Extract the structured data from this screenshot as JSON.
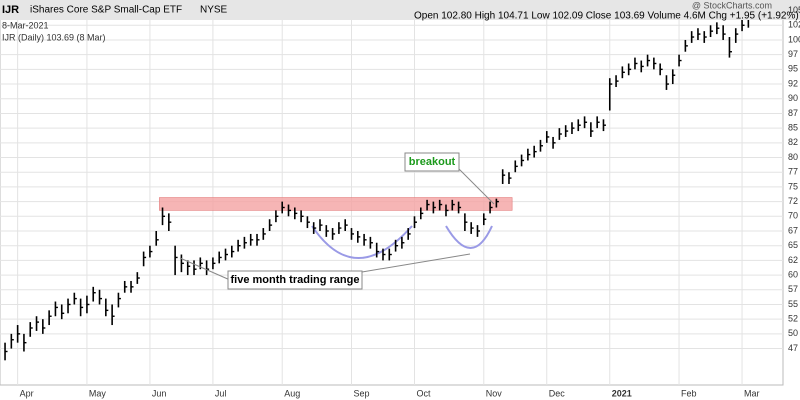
{
  "header": {
    "symbol": "IJR",
    "name": "iShares Core S&P Small-Cap ETF",
    "exchange": "NYSE",
    "brand": "@ StockCharts.com",
    "date": "8-Mar-2021",
    "quote": "Open 102.80 High 104.71 Low 102.09 Close 103.69 Volume 4.6M Chg +1.95 (+1.92%)"
  },
  "chart_data": {
    "type": "ohlc",
    "legend": "IJR (Daily) 103.69 (8 Mar)",
    "color": "#000000",
    "grid": true,
    "annotations": [
      "breakout",
      "five month trading range"
    ],
    "resistance_zone": [
      71,
      73.2
    ],
    "zone_x": [
      24.5,
      80.5
    ],
    "zone_color": "#f4a3a3",
    "ylim": [
      41.3,
      106.8
    ],
    "xlim": [
      -0.8,
      123.5
    ],
    "yticks": [
      {
        "value": 47.5,
        "label": "47"
      },
      50,
      {
        "value": 52.5,
        "label": "52"
      },
      55,
      {
        "value": 57.5,
        "label": "57"
      },
      60,
      {
        "value": 62.5,
        "label": "62"
      },
      65,
      {
        "value": 67.5,
        "label": "67"
      },
      70,
      {
        "value": 72.5,
        "label": "72"
      },
      75,
      {
        "value": 77.5,
        "label": "77"
      },
      80,
      {
        "value": 82.5,
        "label": "82"
      },
      85,
      {
        "value": 87.5,
        "label": "87"
      },
      90,
      {
        "value": 92.5,
        "label": "92"
      },
      95,
      {
        "value": 97.5,
        "label": "97"
      },
      100,
      {
        "value": 102.5,
        "label": "102"
      },
      105
    ],
    "xticks": [
      {
        "value": 2,
        "label": "Apr"
      },
      {
        "value": 13,
        "label": "May"
      },
      {
        "value": 23,
        "label": "Jun"
      },
      {
        "value": 33,
        "label": "Jul"
      },
      {
        "value": 44,
        "label": "Aug"
      },
      {
        "value": 55,
        "label": "Sep"
      },
      {
        "value": 65,
        "label": "Oct"
      },
      {
        "value": 76,
        "label": "Nov"
      },
      {
        "value": 86,
        "label": "Dec"
      },
      {
        "value": 96,
        "label": "2021"
      },
      {
        "value": 107,
        "label": "Feb"
      },
      {
        "value": 117,
        "label": "Mar"
      }
    ],
    "high": [
      48.5,
      50,
      51.5,
      50,
      52,
      53,
      52.5,
      54,
      55.5,
      55,
      56,
      57,
      56,
      56.5,
      58,
      57.5,
      56,
      55,
      57,
      59,
      59,
      60.5,
      64,
      65,
      67.5,
      71.5,
      70.5,
      65,
      63.5,
      62.5,
      62.5,
      63,
      62.5,
      63,
      64,
      64.5,
      65,
      66,
      66.5,
      67,
      67,
      68,
      69.5,
      71,
      72.5,
      72,
      71.5,
      71,
      70,
      69,
      69.5,
      68.5,
      68,
      69,
      69.5,
      68,
      67.5,
      67,
      66.5,
      65.5,
      64.5,
      64.5,
      66,
      66.5,
      68,
      70,
      71.5,
      72.8,
      72.5,
      72.8,
      72,
      72.8,
      72.5,
      70.5,
      69,
      68.5,
      70.5,
      72.5,
      73,
      78,
      77.5,
      79.5,
      80.5,
      81.5,
      82,
      83,
      84.5,
      83.5,
      85,
      85.5,
      86,
      86.5,
      87,
      86,
      87,
      86.5,
      93.5,
      94,
      95.5,
      96,
      97,
      96.5,
      97.5,
      97,
      96,
      94,
      95,
      97.5,
      100,
      101.5,
      102,
      101.5,
      102.5,
      103,
      102.5,
      100.5,
      102,
      103.5,
      104.71
    ],
    "low": [
      45.5,
      47.5,
      48.5,
      47,
      49.5,
      50.5,
      50,
      51.5,
      53,
      52.5,
      53.5,
      55,
      53,
      53.5,
      55.5,
      55,
      53,
      51.5,
      54.5,
      57,
      57,
      58.5,
      61.5,
      63,
      65,
      68.5,
      67.5,
      60,
      60.5,
      60,
      60,
      61,
      60,
      61,
      62,
      62.5,
      63,
      64,
      64.5,
      65,
      65,
      66,
      67.5,
      69,
      70.5,
      70,
      69.5,
      69,
      68,
      67,
      67.5,
      66.5,
      66,
      67,
      67.5,
      66,
      65.5,
      65,
      64.5,
      63,
      62.5,
      62.5,
      64,
      64.5,
      66,
      68,
      69.5,
      71,
      70.5,
      71,
      70,
      71,
      70.5,
      67.5,
      67,
      66.5,
      68.5,
      70.5,
      71.5,
      75.5,
      75.5,
      77.5,
      78.5,
      79.5,
      80,
      81,
      82.5,
      81.5,
      83,
      83.5,
      84,
      84.5,
      85,
      83.5,
      85,
      84.5,
      88,
      92,
      93.5,
      94,
      95,
      94.5,
      95.5,
      95,
      94,
      91.5,
      92.5,
      95.5,
      98,
      99.5,
      100,
      99.5,
      100.5,
      101,
      100,
      97,
      99.5,
      101.5,
      102.09
    ],
    "close": [
      47,
      49,
      50,
      48.5,
      51,
      52,
      51,
      53,
      54.5,
      53.5,
      55,
      56,
      54.5,
      55,
      57,
      56,
      54,
      53,
      56,
      58,
      58,
      59.5,
      63,
      64,
      66,
      70,
      69,
      63,
      62,
      61.5,
      61,
      62,
      61,
      62,
      63,
      63.5,
      64,
      65,
      65.5,
      66,
      66,
      67,
      68.5,
      70,
      71.5,
      71,
      70.5,
      70,
      69,
      68,
      68.5,
      67.5,
      67,
      68,
      68.5,
      67,
      66.5,
      66,
      65.5,
      64,
      63.5,
      63.5,
      65,
      65.5,
      67,
      69,
      70.5,
      72,
      71.5,
      72,
      71,
      72,
      71.5,
      69,
      68,
      67.5,
      69.5,
      71.5,
      72.5,
      77,
      76.5,
      78.5,
      79.5,
      80.5,
      81,
      82,
      83.5,
      82.5,
      84,
      84.5,
      85,
      85.5,
      86,
      84.5,
      86,
      85.5,
      92.5,
      93,
      94.5,
      95,
      96,
      95.5,
      96.5,
      96,
      95,
      92.5,
      94,
      96.5,
      99,
      100.5,
      101,
      100.5,
      101.5,
      102,
      101,
      98,
      101,
      102.5,
      103.69
    ]
  }
}
